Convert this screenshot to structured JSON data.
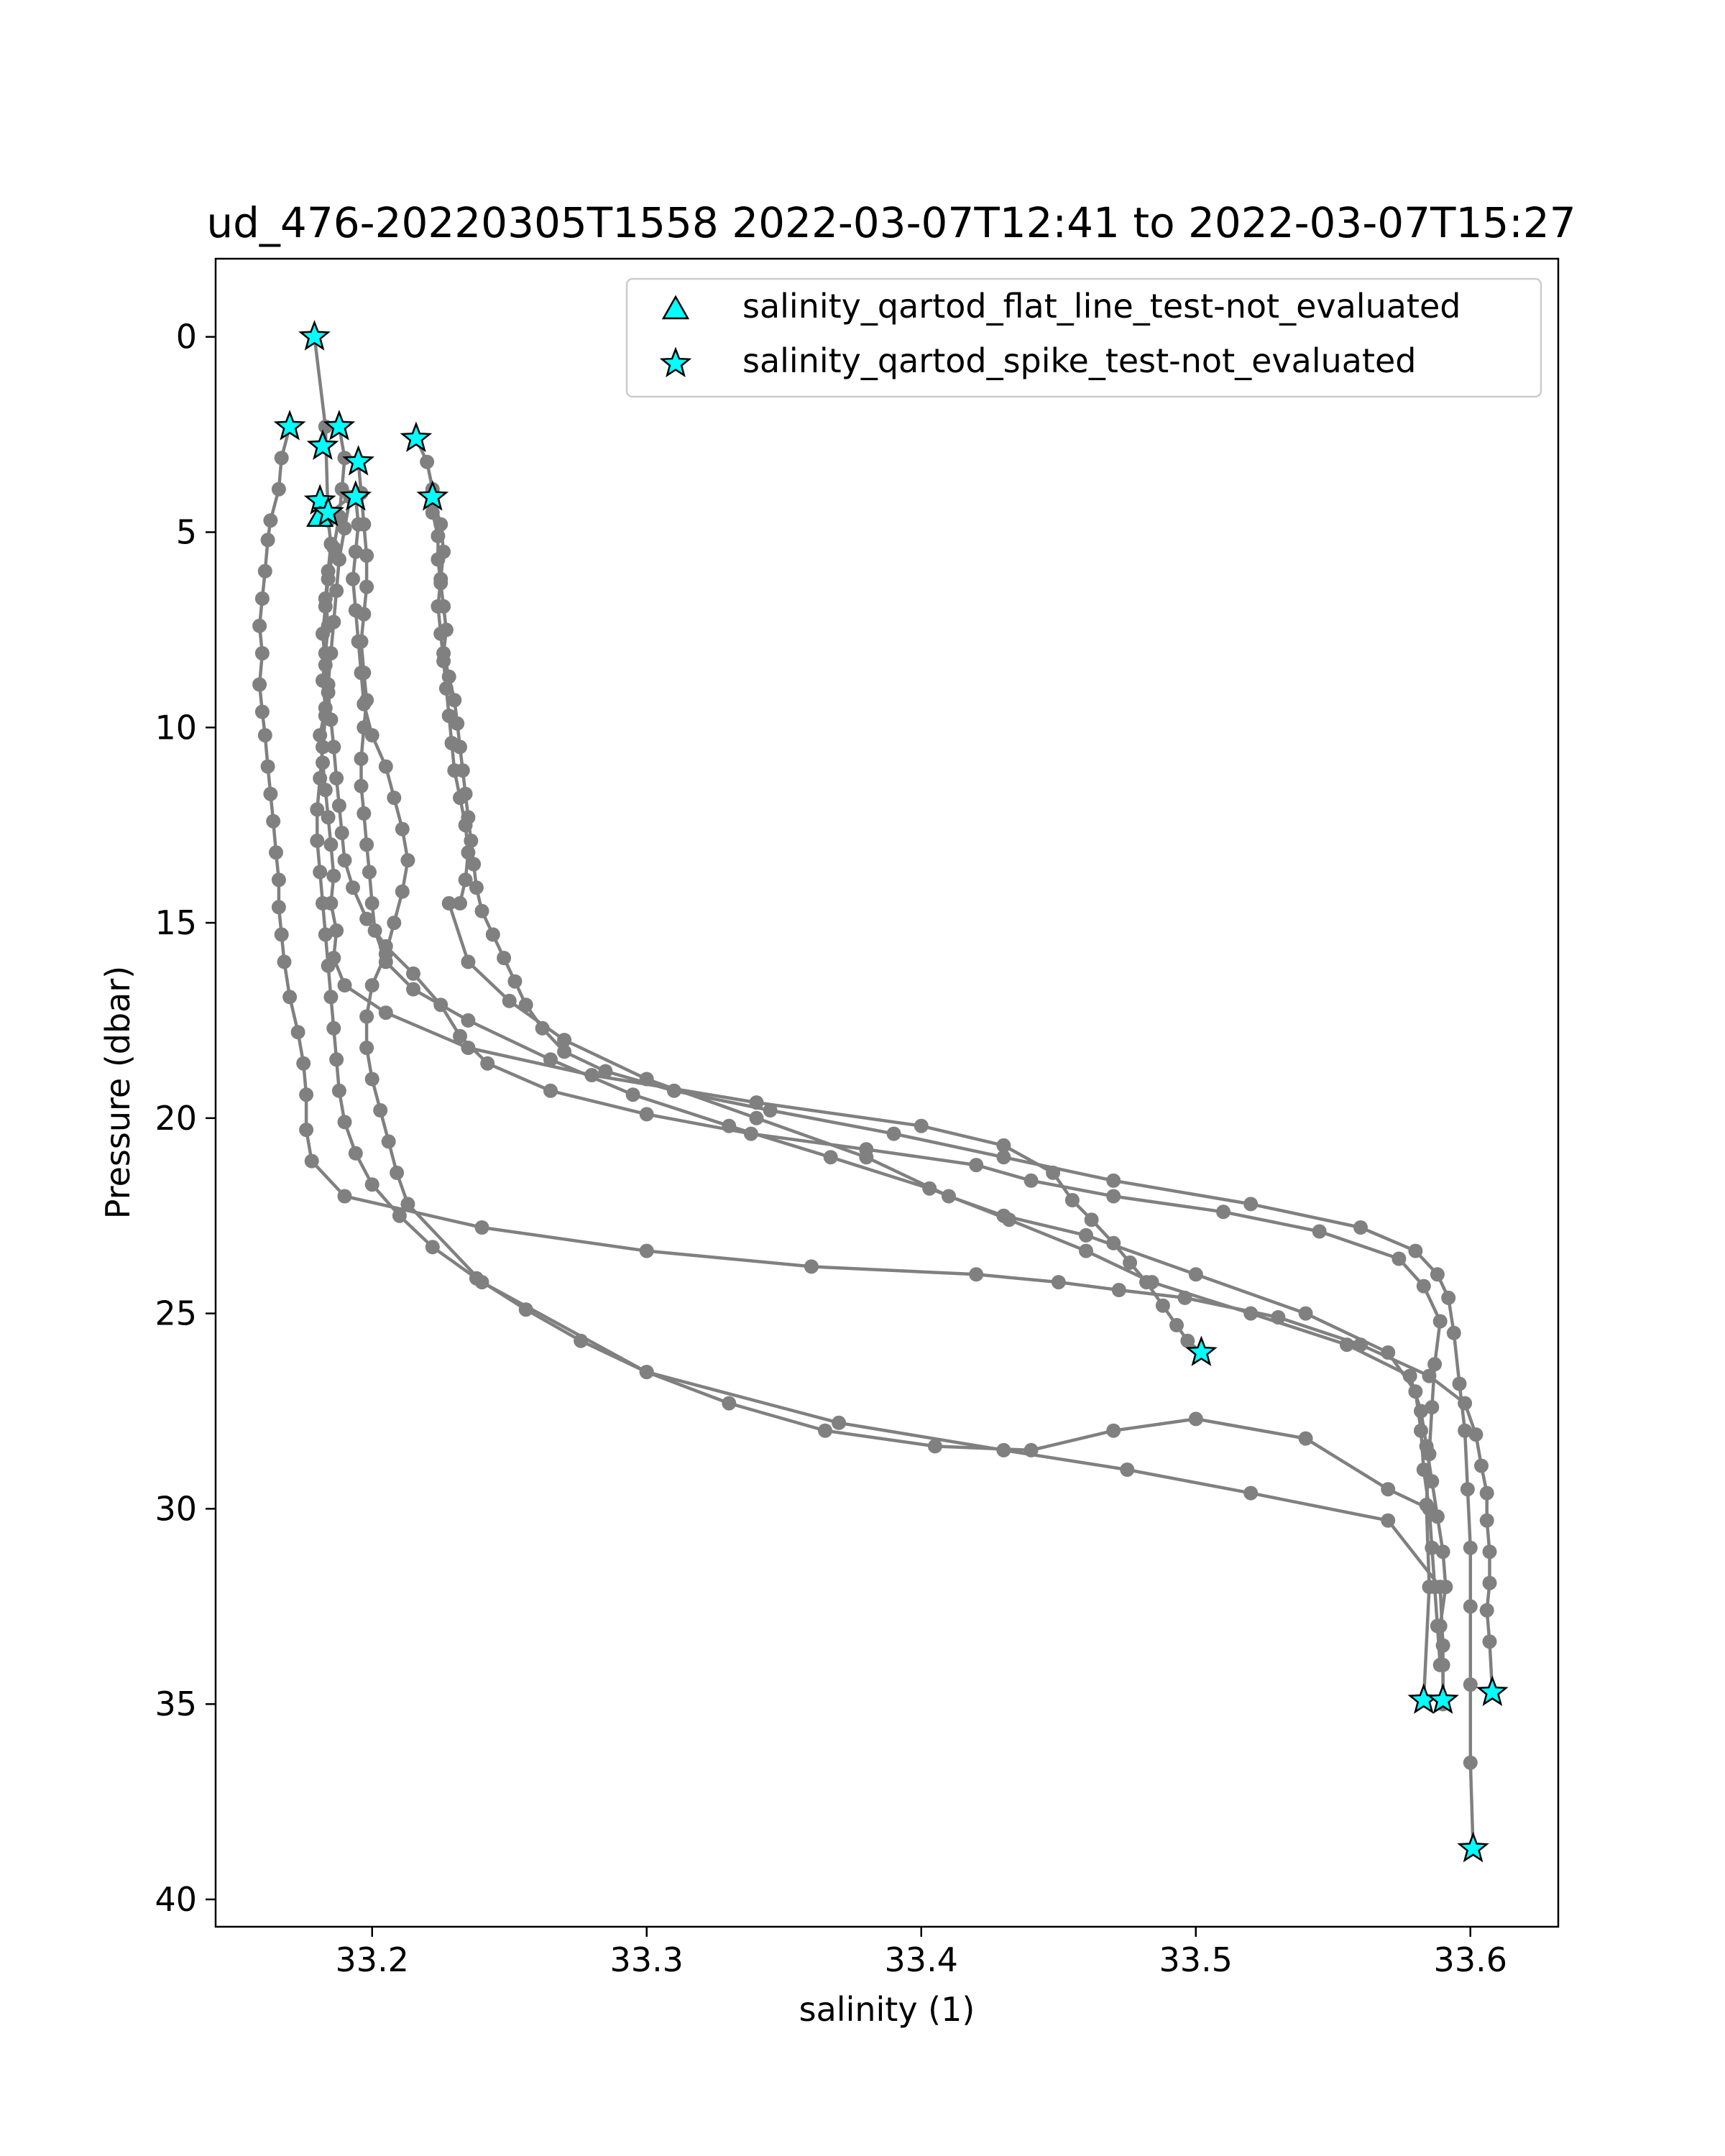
{
  "chart_data": {
    "type": "line",
    "title": "ud_476-20220305T1558 2022-03-07T12:41 to 2022-03-07T15:27",
    "xlabel": "salinity (1)",
    "ylabel": "Pressure (dbar)",
    "xlim": [
      33.143,
      33.632
    ],
    "ylim": [
      40.7,
      -2.0
    ],
    "y_inverted": true,
    "xticks": [
      33.2,
      33.3,
      33.4,
      33.5,
      33.6
    ],
    "xtick_labels": [
      "33.2",
      "33.3",
      "33.4",
      "33.5",
      "33.6"
    ],
    "yticks": [
      0,
      5,
      10,
      15,
      20,
      25,
      30,
      35,
      40
    ],
    "ytick_labels": [
      "0",
      "5",
      "10",
      "15",
      "20",
      "25",
      "30",
      "35",
      "40"
    ],
    "grid": false,
    "line_color": "#808080",
    "marker_color": "#808080",
    "flag_color": "#00ffff",
    "legend": {
      "position": "top-right",
      "entries": [
        {
          "label": "salinity_qartod_flat_line_test-not_evaluated",
          "marker": "triangle"
        },
        {
          "label": "salinity_qartod_spike_test-not_evaluated",
          "marker": "star"
        }
      ]
    },
    "series": [
      {
        "x": [
          33.179,
          33.183,
          33.184,
          33.185,
          33.184,
          33.183,
          33.184,
          33.183,
          33.182,
          33.183,
          33.181,
          33.182,
          33.183,
          33.184,
          33.185,
          33.186,
          33.185,
          33.187,
          33.186,
          33.19,
          33.205,
          33.235,
          33.28,
          33.34,
          33.4,
          33.43,
          33.448,
          33.455,
          33.462,
          33.47,
          33.476,
          33.482,
          33.488,
          33.493,
          33.497,
          33.502
        ],
        "y": [
          0,
          2.3,
          4.7,
          5.3,
          6.0,
          6.7,
          7.4,
          8.1,
          8.8,
          9.5,
          10.2,
          10.9,
          11.6,
          12.3,
          13.0,
          13.8,
          14.5,
          15.2,
          15.9,
          16.6,
          17.3,
          18.2,
          18.9,
          19.6,
          20.2,
          20.7,
          21.4,
          22.1,
          22.6,
          23.2,
          23.7,
          24.2,
          24.8,
          25.3,
          25.7,
          26.0
        ]
      },
      {
        "x": [
          33.17,
          33.167,
          33.166,
          33.163,
          33.162,
          33.161,
          33.16,
          33.159,
          33.16,
          33.159,
          33.16,
          33.161,
          33.162,
          33.163,
          33.164,
          33.165,
          33.166,
          33.166,
          33.167,
          33.168,
          33.17,
          33.173,
          33.175,
          33.176,
          33.176,
          33.178,
          33.19,
          33.24,
          33.3,
          33.36,
          33.42,
          33.45,
          33.472,
          33.496,
          33.53,
          33.56,
          33.585,
          33.598,
          33.602,
          33.604,
          33.606,
          33.606,
          33.607,
          33.607,
          33.606,
          33.607,
          33.608
        ],
        "y": [
          2.3,
          3.1,
          3.9,
          4.7,
          5.2,
          6.0,
          6.7,
          7.4,
          8.1,
          8.9,
          9.6,
          10.2,
          11.0,
          11.7,
          12.4,
          13.2,
          13.9,
          14.6,
          15.3,
          16.0,
          16.9,
          17.8,
          18.6,
          19.4,
          20.3,
          21.1,
          22.0,
          22.8,
          23.4,
          23.8,
          24.0,
          24.2,
          24.4,
          24.6,
          25.1,
          25.8,
          26.6,
          27.3,
          28.1,
          28.9,
          29.6,
          30.3,
          31.1,
          31.9,
          32.6,
          33.4,
          34.7
        ]
      },
      {
        "x": [
          33.188,
          33.19,
          33.189,
          33.188,
          33.186,
          33.184,
          33.183,
          33.182,
          33.183,
          33.184,
          33.185,
          33.186,
          33.187,
          33.188,
          33.189,
          33.19,
          33.193,
          33.198,
          33.205,
          33.215,
          33.225,
          33.232,
          33.242,
          33.265,
          33.3,
          33.338,
          33.38,
          33.42,
          33.44,
          33.47,
          33.51,
          33.545,
          33.574,
          33.583,
          33.589,
          33.587,
          33.586,
          33.585,
          33.584,
          33.585,
          33.583
        ],
        "y": [
          2.3,
          3.1,
          3.9,
          4.6,
          5.4,
          6.2,
          6.9,
          7.6,
          8.4,
          9.1,
          9.8,
          10.5,
          11.3,
          12.0,
          12.7,
          13.4,
          14.1,
          14.9,
          15.6,
          16.3,
          17.1,
          17.9,
          18.6,
          19.3,
          19.9,
          20.4,
          20.8,
          21.2,
          21.6,
          22.0,
          22.4,
          22.9,
          23.6,
          24.3,
          25.2,
          26.3,
          27.4,
          28.6,
          29.9,
          32.0,
          34.9
        ]
      },
      {
        "x": [
          33.195,
          33.196,
          33.197,
          33.198,
          33.198,
          33.197,
          33.196,
          33.197,
          33.198,
          33.197,
          33.196,
          33.196,
          33.197,
          33.198,
          33.199,
          33.2,
          33.201,
          33.205,
          33.215,
          33.235,
          33.265,
          33.295,
          33.33,
          33.367,
          33.403,
          33.432,
          33.46,
          33.484,
          33.52,
          33.555,
          33.578,
          33.582,
          33.584,
          33.586,
          33.588,
          33.59,
          33.591,
          33.589,
          33.59,
          33.59
        ],
        "y": [
          3.2,
          4.0,
          4.8,
          5.6,
          6.4,
          7.1,
          7.8,
          8.6,
          9.3,
          10.0,
          10.8,
          11.5,
          12.2,
          13.0,
          13.7,
          14.5,
          15.2,
          16.0,
          16.7,
          17.5,
          18.5,
          19.4,
          20.2,
          21.0,
          21.8,
          22.6,
          23.4,
          24.2,
          25.0,
          25.8,
          26.6,
          27.5,
          28.4,
          29.3,
          30.2,
          31.1,
          32.0,
          33.0,
          34.0,
          34.9
        ]
      },
      {
        "x": [
          33.216,
          33.22,
          33.222,
          33.222,
          33.224,
          33.224,
          33.225,
          33.226,
          33.227,
          33.226,
          33.228,
          33.23,
          33.231,
          33.232,
          33.233,
          33.234,
          33.235,
          33.236,
          33.237,
          33.238,
          33.24,
          33.244,
          33.248,
          33.252,
          33.256,
          33.262,
          33.27,
          33.285,
          33.31,
          33.345,
          33.39,
          33.43,
          33.47,
          33.52,
          33.56,
          33.58,
          33.588,
          33.592,
          33.594,
          33.596,
          33.598,
          33.599,
          33.6,
          33.6,
          33.6,
          33.6,
          33.601
        ],
        "y": [
          2.6,
          3.2,
          3.9,
          4.5,
          5.1,
          5.7,
          6.3,
          6.9,
          7.5,
          8.1,
          8.7,
          9.3,
          9.9,
          10.5,
          11.1,
          11.7,
          12.3,
          12.9,
          13.5,
          14.1,
          14.7,
          15.3,
          15.9,
          16.5,
          17.1,
          17.7,
          18.3,
          18.8,
          19.3,
          19.8,
          20.4,
          21.0,
          21.6,
          22.2,
          22.8,
          23.4,
          24.0,
          24.6,
          25.5,
          26.8,
          28.0,
          29.5,
          31.0,
          32.5,
          34.5,
          36.5,
          38.7
        ]
      },
      {
        "x": [
          33.222,
          33.225,
          33.226,
          33.225,
          33.224,
          33.225,
          33.226,
          33.227,
          33.228,
          33.229,
          33.23,
          33.232,
          33.234,
          33.235,
          33.234,
          33.232,
          33.228,
          33.235,
          33.25,
          33.27,
          33.3,
          33.34,
          33.38,
          33.41,
          33.43,
          33.46,
          33.5,
          33.54,
          33.57,
          33.58,
          33.582,
          33.583,
          33.585,
          33.586,
          33.587,
          33.588,
          33.589
        ],
        "y": [
          4.1,
          4.8,
          5.5,
          6.2,
          6.9,
          7.6,
          8.3,
          9.0,
          9.7,
          10.4,
          11.1,
          11.8,
          12.5,
          13.2,
          13.9,
          14.5,
          14.5,
          16.0,
          17.0,
          18.0,
          19.0,
          20.0,
          21.0,
          22.0,
          22.5,
          23.0,
          24.0,
          25.0,
          26.0,
          27.0,
          28.0,
          29.0,
          30.0,
          31.0,
          32.0,
          33.0,
          34.0
        ]
      },
      {
        "x": [
          33.183,
          33.192,
          33.19,
          33.188,
          33.187,
          33.186,
          33.185,
          33.184,
          33.183,
          33.182,
          33.181,
          33.18,
          33.18,
          33.181,
          33.182,
          33.183,
          33.184,
          33.185,
          33.186,
          33.187,
          33.188,
          33.19,
          33.194,
          33.2,
          33.21,
          33.222,
          33.238,
          33.256,
          33.276,
          33.3,
          33.33,
          33.365,
          33.405,
          33.44,
          33.47,
          33.5,
          33.54,
          33.57,
          33.585
        ],
        "y": [
          4.6,
          4.1,
          4.9,
          5.7,
          6.5,
          7.3,
          8.1,
          8.9,
          9.7,
          10.5,
          11.3,
          12.1,
          12.9,
          13.7,
          14.5,
          15.3,
          16.1,
          16.9,
          17.7,
          18.5,
          19.3,
          20.1,
          20.9,
          21.7,
          22.5,
          23.3,
          24.1,
          24.9,
          25.7,
          26.5,
          27.3,
          28.0,
          28.4,
          28.5,
          28.0,
          27.7,
          28.2,
          29.5,
          30.0
        ]
      },
      {
        "x": [
          33.194,
          33.195,
          33.194,
          33.193,
          33.194,
          33.195,
          33.196,
          33.197,
          33.2,
          33.205,
          33.208,
          33.211,
          33.213,
          33.211,
          33.208,
          33.205,
          33.2,
          33.198,
          33.198,
          33.2,
          33.203,
          33.206,
          33.209,
          33.213,
          33.24,
          33.3,
          33.37,
          33.43,
          33.475,
          33.52,
          33.57,
          33.589,
          33.59,
          33.59
        ],
        "y": [
          4.1,
          4.8,
          5.5,
          6.2,
          7.0,
          7.8,
          8.6,
          9.4,
          10.2,
          11.0,
          11.8,
          12.6,
          13.4,
          14.2,
          15.0,
          15.8,
          16.6,
          17.4,
          18.2,
          19.0,
          19.8,
          20.6,
          21.4,
          22.2,
          24.2,
          26.5,
          27.8,
          28.5,
          29.0,
          29.6,
          30.3,
          32.0,
          33.5,
          35.0
        ]
      }
    ],
    "flags": {
      "triangle": [
        {
          "x": 33.181,
          "y": 4.6
        }
      ],
      "star": [
        {
          "x": 33.179,
          "y": 0.0
        },
        {
          "x": 33.17,
          "y": 2.3
        },
        {
          "x": 33.188,
          "y": 2.3
        },
        {
          "x": 33.182,
          "y": 2.8
        },
        {
          "x": 33.195,
          "y": 3.2
        },
        {
          "x": 33.216,
          "y": 2.6
        },
        {
          "x": 33.181,
          "y": 4.2
        },
        {
          "x": 33.194,
          "y": 4.1
        },
        {
          "x": 33.222,
          "y": 4.1
        },
        {
          "x": 33.184,
          "y": 4.5
        },
        {
          "x": 33.502,
          "y": 26.0
        },
        {
          "x": 33.583,
          "y": 34.9
        },
        {
          "x": 33.59,
          "y": 34.9
        },
        {
          "x": 33.608,
          "y": 34.7
        },
        {
          "x": 33.601,
          "y": 38.7
        }
      ]
    }
  }
}
